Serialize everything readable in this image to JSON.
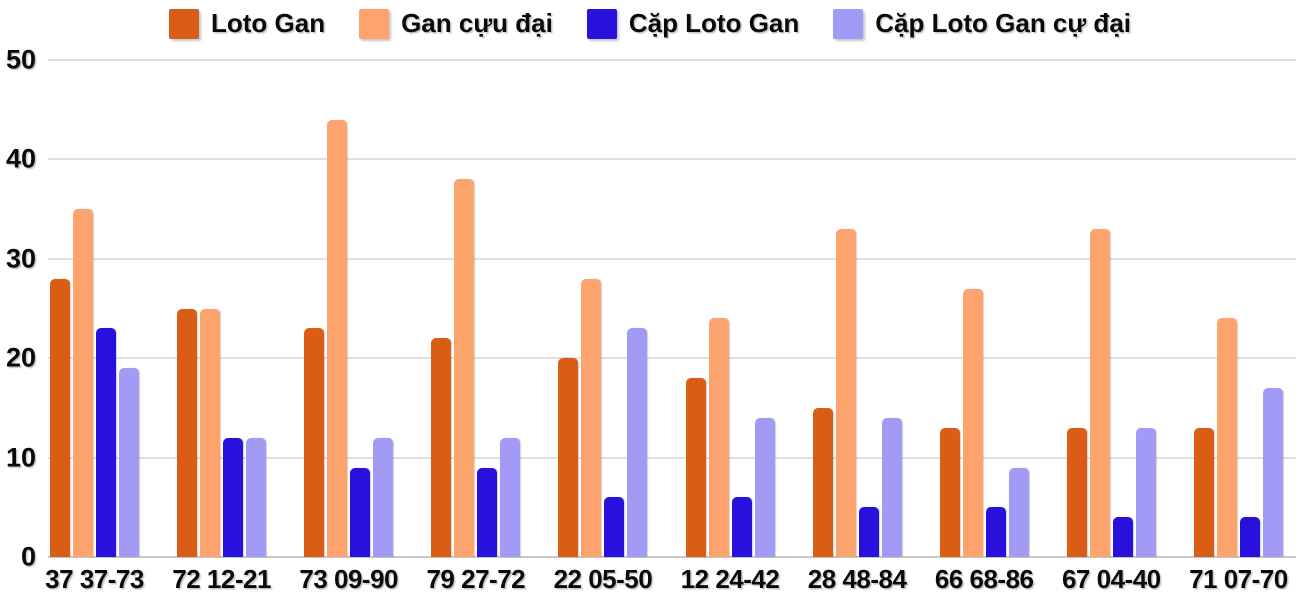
{
  "chart_data": {
    "type": "bar",
    "title": "",
    "xlabel": "",
    "ylabel": "",
    "categories": [
      "37 37-73",
      "72 12-21",
      "73 09-90",
      "79 27-72",
      "22 05-50",
      "12 24-42",
      "28 48-84",
      "66 68-86",
      "67 04-40",
      "71 07-70"
    ],
    "series": [
      {
        "name": "Loto Gan",
        "color": "#d95d15",
        "values": [
          28,
          25,
          23,
          22,
          20,
          18,
          15,
          13,
          13,
          13
        ]
      },
      {
        "name": "Gan cựu đại",
        "color": "#fca36e",
        "values": [
          35,
          25,
          44,
          38,
          28,
          24,
          33,
          27,
          33,
          24
        ]
      },
      {
        "name": "Cặp Loto Gan",
        "color": "#2811dd",
        "values": [
          23,
          12,
          9,
          9,
          6,
          6,
          5,
          5,
          4,
          4
        ]
      },
      {
        "name": "Cặp Loto Gan cự đại",
        "color": "#a29bf6",
        "values": [
          19,
          12,
          12,
          12,
          23,
          14,
          14,
          9,
          13,
          17
        ]
      }
    ],
    "ylim": [
      0,
      50
    ],
    "yticks": [
      0,
      10,
      20,
      30,
      40,
      50
    ],
    "grid": true,
    "legend_position": "top"
  },
  "colors": {
    "background": "#ffffff",
    "gridline": "#e0e0e0",
    "baseline": "#c9c9c9",
    "text": "#0a0a0a"
  }
}
